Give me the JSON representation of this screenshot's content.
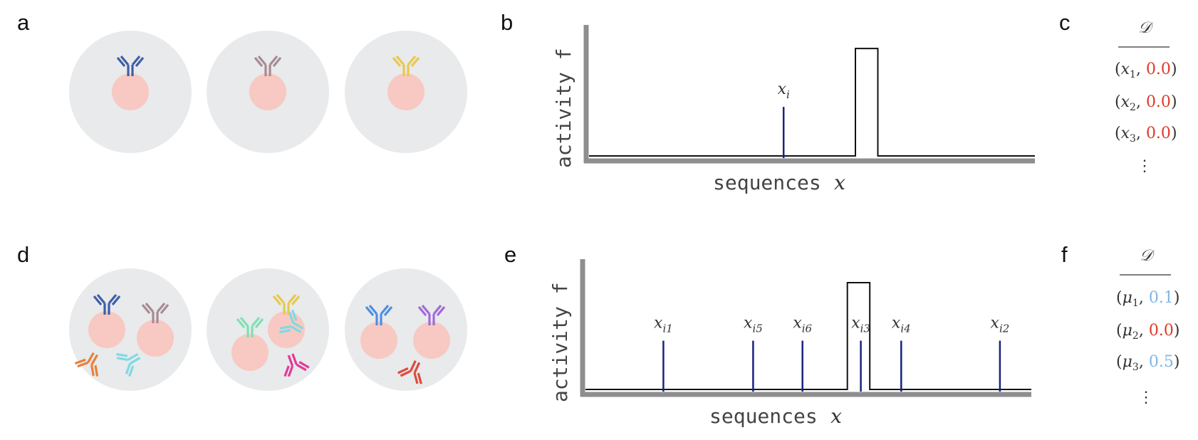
{
  "colors": {
    "cell": "#e8eaeb",
    "nucleus": "#f7c9c2",
    "axis": "#8e8e8e",
    "spike": "#1a237e",
    "red_value": "#e03a2a",
    "blue_value": "#7fb6e6"
  },
  "panels": {
    "a": {
      "letter": "a",
      "cells": [
        {
          "antibodies": [
            {
              "color": "#3d5fa8",
              "icon": "antibody-icon"
            }
          ]
        },
        {
          "antibodies": [
            {
              "color": "#a88a93",
              "icon": "antibody-icon"
            }
          ]
        },
        {
          "antibodies": [
            {
              "color": "#e9c84a",
              "icon": "antibody-icon"
            }
          ]
        }
      ]
    },
    "b": {
      "letter": "b",
      "ylabel": "activity f",
      "xlabel_text": "sequences",
      "xlabel_var": "x",
      "bump": {
        "start": 0.6,
        "end": 0.65,
        "height": 0.92
      },
      "spikes": [
        {
          "x": 0.44,
          "height": 0.42,
          "label": "x",
          "sub": "i"
        }
      ]
    },
    "c": {
      "letter": "c",
      "header": "𝒟",
      "rows": [
        {
          "var": "x",
          "sub": "1",
          "value": "0.0",
          "value_color": "#e03a2a"
        },
        {
          "var": "x",
          "sub": "2",
          "value": "0.0",
          "value_color": "#e03a2a"
        },
        {
          "var": "x",
          "sub": "3",
          "value": "0.0",
          "value_color": "#e03a2a"
        }
      ],
      "ellipsis": "⋮"
    },
    "d": {
      "letter": "d",
      "cells": [
        {
          "antibodies": [
            {
              "color": "#3d5fa8",
              "icon": "antibody-icon"
            },
            {
              "color": "#a88a93",
              "icon": "antibody-icon"
            },
            {
              "color": "#e8803a",
              "icon": "antibody-icon"
            },
            {
              "color": "#7fd9e3",
              "icon": "antibody-icon"
            }
          ]
        },
        {
          "antibodies": [
            {
              "color": "#7fe0b3",
              "icon": "antibody-icon"
            },
            {
              "color": "#e9c84a",
              "icon": "antibody-icon"
            },
            {
              "color": "#7fd9e3",
              "icon": "antibody-icon"
            },
            {
              "color": "#e23a9a",
              "icon": "antibody-icon"
            }
          ]
        },
        {
          "antibodies": [
            {
              "color": "#4f8ee0",
              "icon": "antibody-icon"
            },
            {
              "color": "#a06ad8",
              "icon": "antibody-icon"
            },
            {
              "color": "#e04a3a",
              "icon": "antibody-icon"
            }
          ]
        }
      ]
    },
    "e": {
      "letter": "e",
      "ylabel": "activity f",
      "xlabel_text": "sequences",
      "xlabel_var": "x",
      "bump": {
        "start": 0.59,
        "end": 0.64,
        "height": 0.92
      },
      "spikes": [
        {
          "x": 0.18,
          "height": 0.42,
          "label": "x",
          "sub": "i1"
        },
        {
          "x": 0.38,
          "height": 0.42,
          "label": "x",
          "sub": "i5"
        },
        {
          "x": 0.49,
          "height": 0.42,
          "label": "x",
          "sub": "i6"
        },
        {
          "x": 0.62,
          "height": 0.42,
          "label": "x",
          "sub": "i3"
        },
        {
          "x": 0.71,
          "height": 0.42,
          "label": "x",
          "sub": "i4"
        },
        {
          "x": 0.93,
          "height": 0.42,
          "label": "x",
          "sub": "i2"
        }
      ]
    },
    "f": {
      "letter": "f",
      "header": "𝒟",
      "rows": [
        {
          "var": "μ",
          "sub": "1",
          "value": "0.1",
          "value_color": "#7fb6e6"
        },
        {
          "var": "μ",
          "sub": "2",
          "value": "0.0",
          "value_color": "#e03a2a"
        },
        {
          "var": "μ",
          "sub": "3",
          "value": "0.5",
          "value_color": "#7fb6e6"
        }
      ],
      "ellipsis": "⋮"
    }
  }
}
